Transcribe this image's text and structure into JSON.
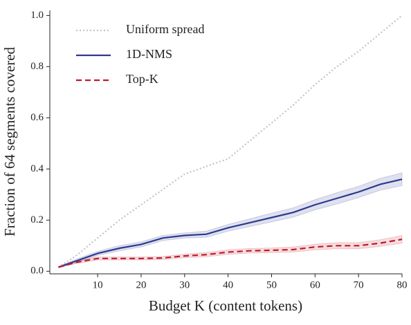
{
  "chart_data": {
    "type": "line",
    "x_label": "Budget K (content tokens)",
    "y_label": "Fraction of 64 segments covered",
    "x": [
      1,
      5,
      10,
      15,
      20,
      25,
      30,
      35,
      40,
      45,
      50,
      55,
      60,
      65,
      70,
      75,
      80
    ],
    "series": [
      {
        "name": "Uniform spread",
        "color": "#c4c4c4",
        "style": "dotted",
        "values": [
          0.016,
          0.06,
          0.13,
          0.2,
          0.26,
          0.32,
          0.38,
          0.41,
          0.44,
          0.51,
          0.58,
          0.65,
          0.73,
          0.8,
          0.86,
          0.93,
          1.0
        ]
      },
      {
        "name": "1D-NMS",
        "color": "#2b3990",
        "style": "solid",
        "values": [
          0.016,
          0.04,
          0.07,
          0.09,
          0.105,
          0.13,
          0.14,
          0.145,
          0.17,
          0.19,
          0.21,
          0.23,
          0.26,
          0.285,
          0.31,
          0.34,
          0.36
        ],
        "lower": [
          0.014,
          0.033,
          0.062,
          0.08,
          0.095,
          0.12,
          0.13,
          0.133,
          0.157,
          0.175,
          0.193,
          0.212,
          0.24,
          0.263,
          0.288,
          0.317,
          0.335
        ],
        "upper": [
          0.018,
          0.047,
          0.078,
          0.1,
          0.115,
          0.14,
          0.15,
          0.157,
          0.183,
          0.205,
          0.227,
          0.248,
          0.28,
          0.307,
          0.332,
          0.363,
          0.385
        ]
      },
      {
        "name": "Top-K",
        "color": "#c0182a",
        "style": "dashed",
        "values": [
          0.016,
          0.035,
          0.05,
          0.05,
          0.05,
          0.052,
          0.06,
          0.065,
          0.075,
          0.08,
          0.082,
          0.085,
          0.095,
          0.1,
          0.1,
          0.11,
          0.125
        ],
        "lower": [
          0.014,
          0.03,
          0.044,
          0.044,
          0.044,
          0.046,
          0.053,
          0.057,
          0.066,
          0.071,
          0.073,
          0.075,
          0.084,
          0.088,
          0.088,
          0.097,
          0.11
        ],
        "upper": [
          0.018,
          0.04,
          0.056,
          0.056,
          0.056,
          0.058,
          0.067,
          0.073,
          0.084,
          0.089,
          0.091,
          0.095,
          0.106,
          0.112,
          0.112,
          0.123,
          0.14
        ]
      }
    ],
    "xlim": [
      -1,
      80
    ],
    "xticks": [
      10,
      20,
      30,
      40,
      50,
      60,
      70,
      80
    ],
    "ylim": [
      -0.01,
      1.02
    ],
    "yticks": [
      {
        "value": 0,
        "label": "0.0"
      },
      0.2,
      0.4,
      0.6,
      0.8,
      {
        "value": 1,
        "label": "1.0"
      }
    ],
    "legend": "upper left"
  }
}
